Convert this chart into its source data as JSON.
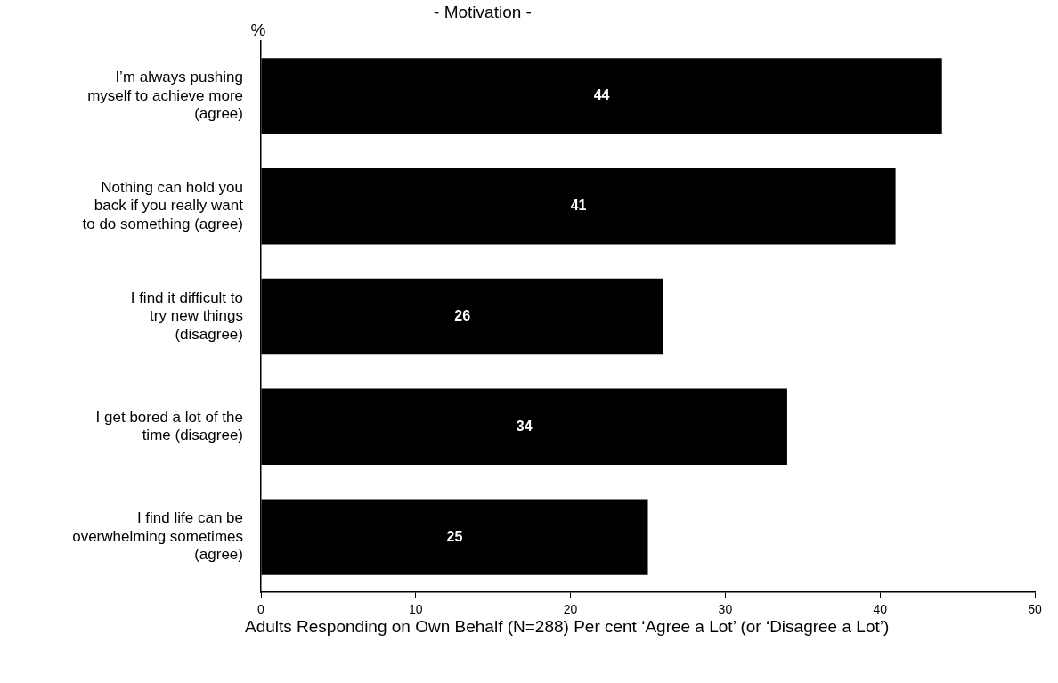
{
  "chart_data": {
    "type": "bar",
    "orientation": "horizontal",
    "title": "- Motivation -",
    "ylabel": "%",
    "xlabel": "Adults Responding on Own Behalf (N=288) Per cent ‘Agree a Lot’ (or ‘Disagree a Lot’)",
    "categories": [
      "I’m always pushing myself to achieve more (agree)",
      "Nothing can hold you back if you really want to do something (agree)",
      "I find it difficult to try new things (disagree)",
      "I get bored a lot of the time (disagree)",
      "I find life can be overwhelming sometimes (agree)"
    ],
    "values": [
      44,
      41,
      26,
      34,
      25
    ],
    "color": "#000000",
    "xlim": [
      0,
      50
    ],
    "xticks": [
      0,
      10,
      20,
      30,
      40,
      50
    ],
    "grid": false,
    "legend": false,
    "data_labels": true
  }
}
